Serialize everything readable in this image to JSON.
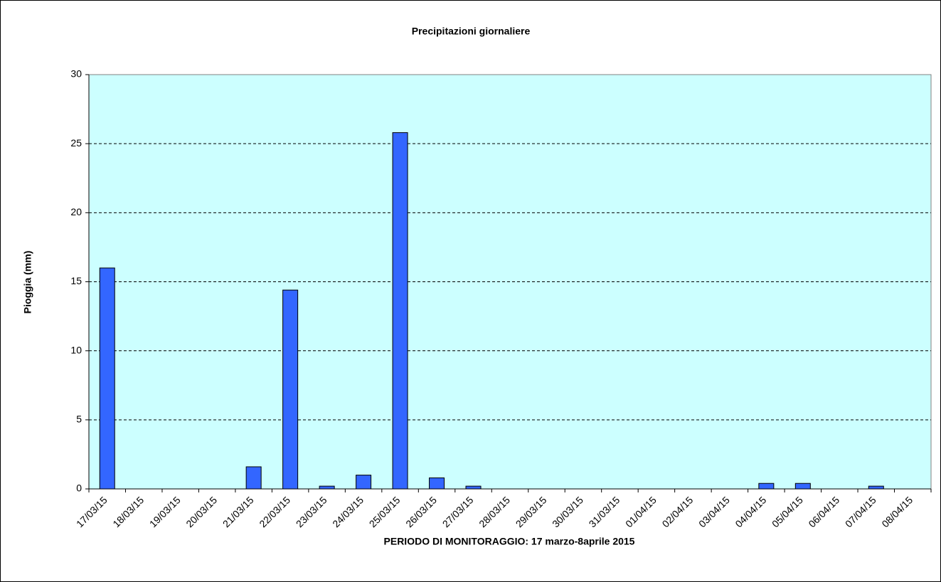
{
  "chart_data": {
    "type": "bar",
    "title": "Precipitazioni giornaliere",
    "x_label": "PERIODO DI MONITORAGGIO: 17 marzo-8aprile 2015",
    "y_label": "Pioggia (mm)",
    "categories": [
      "17/03/15",
      "18/03/15",
      "19/03/15",
      "20/03/15",
      "21/03/15",
      "22/03/15",
      "23/03/15",
      "24/03/15",
      "25/03/15",
      "26/03/15",
      "27/03/15",
      "28/03/15",
      "29/03/15",
      "30/03/15",
      "31/03/15",
      "01/04/15",
      "02/04/15",
      "03/04/15",
      "04/04/15",
      "05/04/15",
      "06/04/15",
      "07/04/15",
      "08/04/15"
    ],
    "values": [
      16,
      0,
      0,
      0,
      1.6,
      14.4,
      0.2,
      1,
      25.8,
      0.8,
      0.2,
      0,
      0,
      0,
      0,
      0,
      0,
      0,
      0.4,
      0.4,
      0,
      0.2,
      0
    ],
    "color": "#3366ff",
    "ylim": [
      0,
      30
    ],
    "yticks": [
      0,
      5,
      10,
      15,
      20,
      25,
      30
    ],
    "grid": true
  }
}
